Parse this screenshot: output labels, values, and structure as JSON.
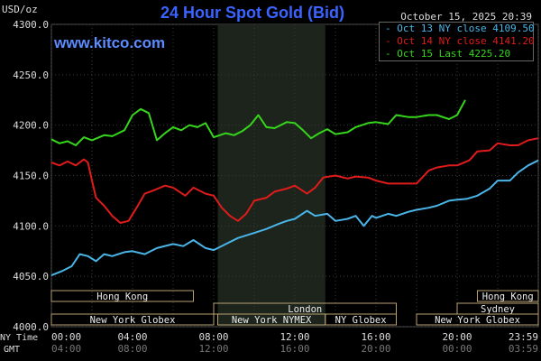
{
  "header": {
    "title": "24 Hour Spot Gold (Bid)",
    "unit": "USD/oz",
    "datetime": "October 15, 2025 20:39",
    "site": "www.kitco.com"
  },
  "legend": {
    "items": [
      {
        "label": "Oct 13 NY close 4109.50",
        "color": "#4ab6e8"
      },
      {
        "label": "Oct 14 NY close 4141.20",
        "color": "#e01b1b"
      },
      {
        "label": "Oct 15 Last 4225.20",
        "color": "#35d61b"
      }
    ]
  },
  "sessions": [
    {
      "label": "Hong Kong",
      "row": 0,
      "start": 0,
      "end": 7
    },
    {
      "label": "London",
      "row": 1,
      "start": 8,
      "end": 17
    },
    {
      "label": "New York Globex",
      "row": 2,
      "start": 0,
      "end": 8
    },
    {
      "label": "New York NYMEX",
      "row": 2,
      "start": 8.2,
      "end": 13.5
    },
    {
      "label": "NY Globex",
      "row": 2,
      "start": 13.5,
      "end": 17
    },
    {
      "label": "Hong Kong",
      "row": 0,
      "start": 21,
      "end": 24
    },
    {
      "label": "Sydney",
      "row": 1,
      "start": 20,
      "end": 24
    },
    {
      "label": "New York Globex",
      "row": 2,
      "start": 18,
      "end": 24
    }
  ],
  "axis_labels": {
    "ny_time": "NY Time",
    "gmt": "GMT",
    "ny_ticks": [
      "00:00",
      "04:00",
      "08:00",
      "12:00",
      "16:00",
      "20:00",
      "23:59"
    ],
    "gmt_ticks": [
      "04:00",
      "08:00",
      "12:00",
      "16:00",
      "20:00",
      "00:00",
      "03:59"
    ]
  },
  "chart_data": {
    "type": "line",
    "title": "24 Hour Spot Gold (Bid)",
    "ylabel": "USD/oz",
    "ylim": [
      4000,
      4300
    ],
    "yticks": [
      "4000.0",
      "4050.0",
      "4100.0",
      "4150.0",
      "4200.0",
      "4250.0",
      "4300.0"
    ],
    "xlim": [
      0,
      24
    ],
    "grid": true,
    "legend_position": "top-right",
    "shaded_hours": [
      8.2,
      13.5
    ],
    "series": [
      {
        "name": "Oct 13 NY close 4109.50",
        "color": "#4ab6e8",
        "x": [
          0,
          0.5,
          1,
          1.4,
          1.8,
          2.2,
          2.6,
          3,
          3.6,
          4,
          4.6,
          5.2,
          6,
          6.5,
          7,
          7.6,
          8,
          8.6,
          9.2,
          10,
          10.6,
          11.2,
          11.6,
          12,
          12.6,
          13,
          13.6,
          14,
          14.6,
          15,
          15.4,
          15.8,
          16,
          16.6,
          17,
          17.6,
          18,
          18.6,
          19,
          19.6,
          20,
          20.5,
          21,
          21.6,
          22,
          22.6,
          23,
          23.5,
          24
        ],
        "y": [
          4051,
          4055,
          4060,
          4072,
          4070,
          4065,
          4072,
          4070,
          4074,
          4075,
          4072,
          4078,
          4082,
          4080,
          4086,
          4078,
          4076,
          4082,
          4088,
          4093,
          4097,
          4102,
          4105,
          4107,
          4115,
          4110,
          4112,
          4105,
          4107,
          4110,
          4100,
          4110,
          4108,
          4112,
          4110,
          4114,
          4116,
          4118,
          4120,
          4125,
          4126,
          4127,
          4130,
          4137,
          4145,
          4145,
          4153,
          4160,
          4165
        ]
      },
      {
        "name": "Oct 14 NY close 4141.20",
        "color": "#e01b1b",
        "x": [
          0,
          0.4,
          0.8,
          1.2,
          1.6,
          1.8,
          2,
          2.2,
          2.6,
          3,
          3.4,
          3.8,
          4.2,
          4.6,
          5,
          5.6,
          6,
          6.6,
          7,
          7.6,
          8,
          8.4,
          8.8,
          9.2,
          9.6,
          10,
          10.6,
          11,
          11.6,
          12,
          12.6,
          13,
          13.4,
          14,
          14.6,
          15,
          15.6,
          16,
          16.6,
          17,
          17.6,
          18,
          18.6,
          19,
          19.6,
          20,
          20.6,
          21,
          21.6,
          22,
          22.6,
          23,
          23.5,
          24
        ],
        "y": [
          4163,
          4160,
          4164,
          4160,
          4166,
          4163,
          4145,
          4128,
          4120,
          4110,
          4103,
          4105,
          4118,
          4132,
          4135,
          4140,
          4138,
          4130,
          4138,
          4132,
          4130,
          4118,
          4110,
          4105,
          4112,
          4125,
          4128,
          4134,
          4137,
          4140,
          4132,
          4138,
          4148,
          4150,
          4147,
          4149,
          4148,
          4145,
          4142,
          4142,
          4142,
          4142,
          4155,
          4158,
          4160,
          4160,
          4165,
          4174,
          4175,
          4182,
          4180,
          4180,
          4185,
          4187
        ]
      },
      {
        "name": "Oct 15 Last 4225.20",
        "color": "#35d61b",
        "x": [
          0,
          0.4,
          0.8,
          1.2,
          1.6,
          2,
          2.6,
          3,
          3.6,
          4,
          4.4,
          4.8,
          5.2,
          5.6,
          6,
          6.4,
          6.8,
          7.2,
          7.6,
          8,
          8.6,
          9,
          9.4,
          9.8,
          10.2,
          10.6,
          11,
          11.6,
          12,
          12.4,
          12.8,
          13.2,
          13.6,
          14,
          14.6,
          15,
          15.6,
          16,
          16.6,
          17,
          17.6,
          18,
          18.6,
          19,
          19.6,
          20,
          20.4
        ],
        "y": [
          4186,
          4182,
          4184,
          4180,
          4188,
          4185,
          4190,
          4189,
          4195,
          4210,
          4216,
          4212,
          4185,
          4192,
          4198,
          4195,
          4200,
          4198,
          4202,
          4188,
          4192,
          4190,
          4194,
          4200,
          4210,
          4198,
          4197,
          4203,
          4202,
          4195,
          4187,
          4192,
          4196,
          4191,
          4193,
          4198,
          4202,
          4203,
          4201,
          4210,
          4208,
          4208,
          4210,
          4210,
          4206,
          4210,
          4225
        ]
      }
    ]
  }
}
